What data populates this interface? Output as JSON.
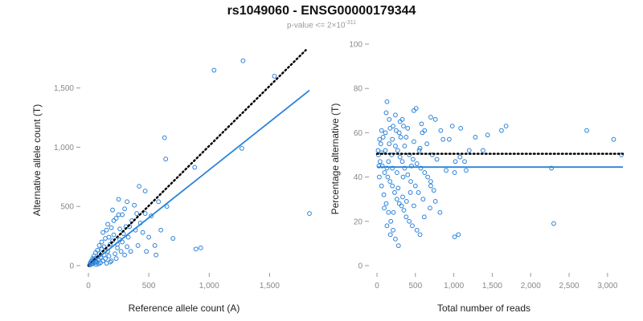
{
  "title": "rs1049060 - ENSG00000179344",
  "subtitle": {
    "prefix": "p-value <= 2×10",
    "exponent": "-311"
  },
  "colors": {
    "accent": "#2a82da",
    "reference_line": "#000000",
    "tick_text": "#888888"
  },
  "chart_data": [
    {
      "type": "scatter",
      "xlabel": "Reference allele count (A)",
      "ylabel": "Alternative allele count (T)",
      "xlim": [
        0,
        1850
      ],
      "ylim": [
        0,
        1850
      ],
      "xticks": [
        0,
        500,
        1000,
        1500
      ],
      "xtick_labels": [
        "0",
        "500",
        "1,000",
        "1,500"
      ],
      "yticks": [
        0,
        500,
        1000,
        1500
      ],
      "ytick_labels": [
        "0",
        "500",
        "1,000",
        "1,500"
      ],
      "grid": false,
      "lines": [
        {
          "style": "dotted",
          "color": "#000000",
          "x": [
            0,
            1800
          ],
          "y": [
            0,
            1820
          ]
        },
        {
          "style": "solid",
          "color": "#2a82da",
          "x": [
            0,
            1830
          ],
          "y": [
            0,
            1480
          ]
        }
      ],
      "points": [
        [
          1040,
          1650
        ],
        [
          1280,
          1730
        ],
        [
          1540,
          1600
        ],
        [
          1270,
          990
        ],
        [
          630,
          1080
        ],
        [
          640,
          900
        ],
        [
          880,
          830
        ],
        [
          1830,
          440
        ],
        [
          890,
          140
        ],
        [
          930,
          150
        ],
        [
          650,
          500
        ],
        [
          580,
          540
        ],
        [
          420,
          670
        ],
        [
          470,
          630
        ],
        [
          380,
          510
        ],
        [
          300,
          480
        ],
        [
          250,
          430
        ],
        [
          200,
          470
        ],
        [
          260,
          310
        ],
        [
          360,
          380
        ],
        [
          390,
          300
        ],
        [
          450,
          280
        ],
        [
          330,
          240
        ],
        [
          210,
          260
        ],
        [
          150,
          300
        ],
        [
          120,
          280
        ],
        [
          280,
          200
        ],
        [
          500,
          240
        ],
        [
          550,
          170
        ],
        [
          410,
          170
        ],
        [
          350,
          120
        ],
        [
          300,
          90
        ],
        [
          240,
          150
        ],
        [
          180,
          180
        ],
        [
          160,
          120
        ],
        [
          130,
          90
        ],
        [
          100,
          70
        ],
        [
          80,
          50
        ],
        [
          60,
          40
        ],
        [
          40,
          30
        ],
        [
          30,
          15
        ],
        [
          20,
          10
        ],
        [
          15,
          20
        ],
        [
          50,
          60
        ],
        [
          70,
          30
        ],
        [
          90,
          100
        ],
        [
          110,
          140
        ],
        [
          140,
          60
        ],
        [
          170,
          80
        ],
        [
          190,
          40
        ],
        [
          220,
          100
        ],
        [
          230,
          60
        ],
        [
          270,
          120
        ],
        [
          200,
          210
        ],
        [
          320,
          160
        ],
        [
          260,
          220
        ],
        [
          340,
          330
        ],
        [
          430,
          360
        ],
        [
          470,
          440
        ],
        [
          520,
          420
        ],
        [
          160,
          350
        ],
        [
          210,
          380
        ],
        [
          140,
          230
        ],
        [
          110,
          200
        ],
        [
          90,
          170
        ],
        [
          75,
          130
        ],
        [
          60,
          110
        ],
        [
          45,
          80
        ],
        [
          35,
          60
        ],
        [
          25,
          40
        ],
        [
          120,
          40
        ],
        [
          150,
          20
        ],
        [
          180,
          30
        ],
        [
          100,
          25
        ],
        [
          85,
          15
        ],
        [
          65,
          10
        ],
        [
          55,
          25
        ],
        [
          10,
          5
        ],
        [
          20,
          30
        ],
        [
          35,
          15
        ],
        [
          45,
          45
        ],
        [
          130,
          160
        ],
        [
          170,
          240
        ],
        [
          240,
          180
        ],
        [
          290,
          270
        ],
        [
          310,
          330
        ],
        [
          190,
          320
        ],
        [
          230,
          400
        ],
        [
          280,
          430
        ],
        [
          400,
          440
        ],
        [
          250,
          560
        ],
        [
          320,
          540
        ],
        [
          600,
          300
        ],
        [
          700,
          230
        ],
        [
          560,
          90
        ],
        [
          480,
          120
        ]
      ]
    },
    {
      "type": "scatter",
      "xlabel": "Total number of reads",
      "ylabel": "Percentage alternative (T)",
      "xlim": [
        0,
        3200
      ],
      "ylim": [
        0,
        100
      ],
      "xticks": [
        0,
        500,
        1000,
        1500,
        2000,
        2500,
        3000
      ],
      "xtick_labels": [
        "0",
        "500",
        "1,000",
        "1,500",
        "2,000",
        "2,500",
        "3,000"
      ],
      "yticks": [
        0,
        20,
        40,
        60,
        80,
        100
      ],
      "ytick_labels": [
        "0",
        "20",
        "40",
        "60",
        "80",
        "100"
      ],
      "grid": false,
      "lines": [
        {
          "style": "dotted",
          "color": "#000000",
          "x": [
            0,
            3200
          ],
          "y": [
            50.5,
            50.5
          ]
        },
        {
          "style": "solid",
          "color": "#2a82da",
          "x": [
            0,
            3200
          ],
          "y": [
            44.5,
            44.5
          ]
        }
      ],
      "points": [
        [
          130,
          74
        ],
        [
          120,
          69
        ],
        [
          240,
          68
        ],
        [
          480,
          70
        ],
        [
          510,
          71
        ],
        [
          330,
          66
        ],
        [
          700,
          67
        ],
        [
          760,
          66
        ],
        [
          580,
          64
        ],
        [
          210,
          63
        ],
        [
          300,
          65
        ],
        [
          400,
          62
        ],
        [
          620,
          61
        ],
        [
          830,
          61
        ],
        [
          980,
          63
        ],
        [
          1090,
          62
        ],
        [
          1620,
          61
        ],
        [
          1280,
          58
        ],
        [
          2730,
          61
        ],
        [
          3080,
          57
        ],
        [
          3180,
          50
        ],
        [
          1680,
          63
        ],
        [
          2270,
          44
        ],
        [
          2300,
          19
        ],
        [
          1010,
          13
        ],
        [
          1060,
          14
        ],
        [
          820,
          24
        ],
        [
          760,
          29
        ],
        [
          700,
          38
        ],
        [
          900,
          43
        ],
        [
          1010,
          42
        ],
        [
          1140,
          47
        ],
        [
          1160,
          43
        ],
        [
          1020,
          47
        ],
        [
          1080,
          49
        ],
        [
          560,
          53
        ],
        [
          480,
          56
        ],
        [
          380,
          58
        ],
        [
          290,
          60
        ],
        [
          200,
          57
        ],
        [
          160,
          55
        ],
        [
          110,
          52
        ],
        [
          60,
          51
        ],
        [
          20,
          50
        ],
        [
          15,
          52
        ],
        [
          40,
          47
        ],
        [
          70,
          45
        ],
        [
          100,
          42
        ],
        [
          140,
          40
        ],
        [
          170,
          38
        ],
        [
          200,
          36
        ],
        [
          230,
          33
        ],
        [
          260,
          30
        ],
        [
          290,
          28
        ],
        [
          320,
          27
        ],
        [
          350,
          25
        ],
        [
          380,
          22
        ],
        [
          420,
          20
        ],
        [
          460,
          18
        ],
        [
          520,
          16
        ],
        [
          560,
          14
        ],
        [
          280,
          9
        ],
        [
          240,
          12
        ],
        [
          210,
          16
        ],
        [
          180,
          20
        ],
        [
          150,
          24
        ],
        [
          120,
          28
        ],
        [
          90,
          32
        ],
        [
          60,
          36
        ],
        [
          30,
          40
        ],
        [
          25,
          45
        ],
        [
          50,
          55
        ],
        [
          80,
          58
        ],
        [
          110,
          60
        ],
        [
          170,
          62
        ],
        [
          250,
          61
        ],
        [
          310,
          58
        ],
        [
          360,
          54
        ],
        [
          420,
          50
        ],
        [
          470,
          48
        ],
        [
          520,
          46
        ],
        [
          570,
          44
        ],
        [
          620,
          42
        ],
        [
          660,
          40
        ],
        [
          700,
          36
        ],
        [
          740,
          34
        ],
        [
          600,
          30
        ],
        [
          540,
          33
        ],
        [
          500,
          36
        ],
        [
          440,
          38
        ],
        [
          400,
          41
        ],
        [
          360,
          44
        ],
        [
          330,
          47
        ],
        [
          300,
          49
        ],
        [
          270,
          52
        ],
        [
          240,
          54
        ],
        [
          190,
          50
        ],
        [
          150,
          47
        ],
        [
          130,
          44
        ],
        [
          200,
          44
        ],
        [
          260,
          42
        ],
        [
          340,
          40
        ],
        [
          450,
          45
        ],
        [
          550,
          52
        ],
        [
          650,
          55
        ],
        [
          720,
          50
        ],
        [
          780,
          48
        ],
        [
          860,
          57
        ],
        [
          940,
          57
        ],
        [
          1200,
          52
        ],
        [
          1440,
          59
        ],
        [
          1380,
          52
        ],
        [
          95,
          26
        ],
        [
          130,
          18
        ],
        [
          175,
          14
        ],
        [
          215,
          24
        ],
        [
          275,
          35
        ],
        [
          335,
          31
        ],
        [
          385,
          29
        ],
        [
          435,
          33
        ],
        [
          480,
          27
        ],
        [
          615,
          22
        ],
        [
          690,
          26
        ],
        [
          590,
          60
        ],
        [
          345,
          63
        ],
        [
          160,
          66
        ],
        [
          60,
          61
        ],
        [
          35,
          57
        ]
      ]
    }
  ]
}
